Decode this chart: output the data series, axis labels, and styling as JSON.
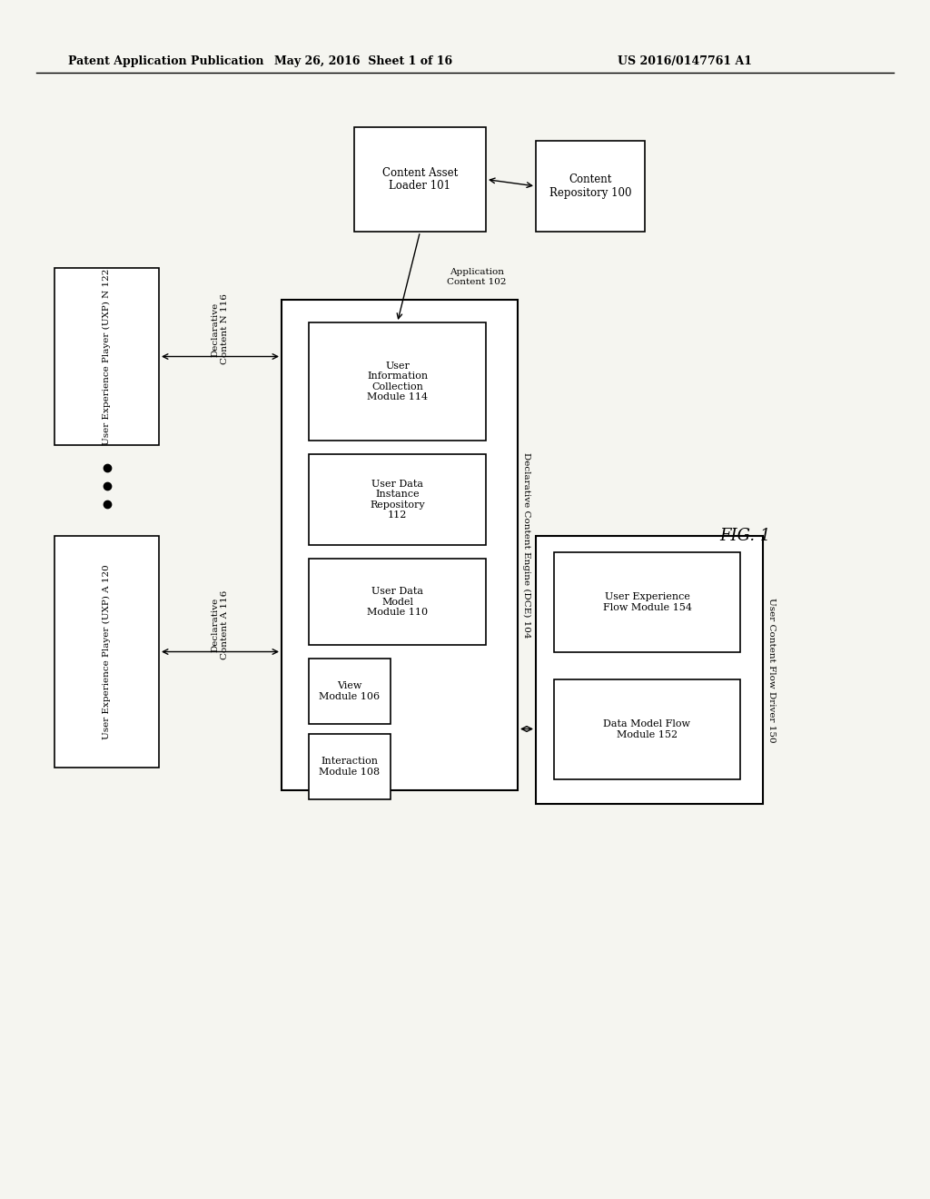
{
  "bg_color": "#f5f5f0",
  "header_left": "Patent Application Publication",
  "header_mid": "May 26, 2016  Sheet 1 of 16",
  "header_right": "US 2016/0147761 A1",
  "fig_label": "FIG. 1"
}
